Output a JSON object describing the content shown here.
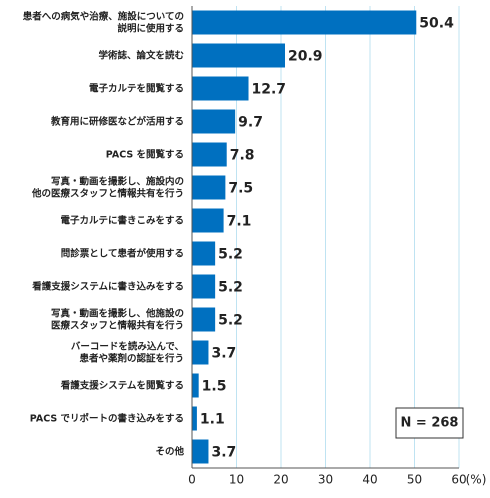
{
  "chart_data": {
    "type": "bar",
    "orientation": "horizontal",
    "categories": [
      [
        "患者への病気や治療、施設についての",
        "説明に使用する"
      ],
      [
        "学術誌、論文を読む"
      ],
      [
        "電子カルテを閲覧する"
      ],
      [
        "教育用に研修医などが活用する"
      ],
      [
        "PACS を閲覧する"
      ],
      [
        "写真・動画を撮影し、施設内の",
        "他の医療スタッフと情報共有を行う"
      ],
      [
        "電子カルテに書きこみをする"
      ],
      [
        "問診票として患者が使用する"
      ],
      [
        "看護支援システムに書き込みをする"
      ],
      [
        "写真・動画を撮影し、他施設の",
        "医療スタッフと情報共有を行う"
      ],
      [
        "バーコードを読み込んで、",
        "患者や薬剤の認証を行う"
      ],
      [
        "看護支援システムを閲覧する"
      ],
      [
        "PACS でリポートの書き込みをする"
      ],
      [
        "その他"
      ]
    ],
    "values": [
      50.4,
      20.9,
      12.7,
      9.7,
      7.8,
      7.5,
      7.1,
      5.2,
      5.2,
      5.2,
      3.7,
      1.5,
      1.1,
      3.7
    ],
    "color": "#0070c0",
    "xlim": [
      0,
      60
    ],
    "xticks": [
      0,
      10,
      20,
      30,
      40,
      50,
      60
    ],
    "x_label": "(%)",
    "grid": true,
    "annotation": "N = 268"
  }
}
